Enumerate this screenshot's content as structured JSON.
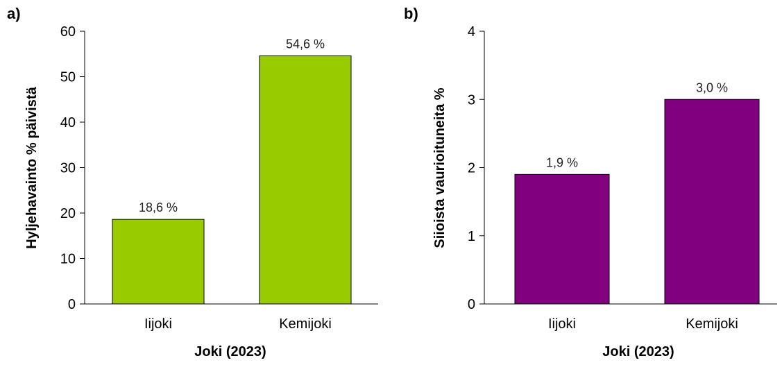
{
  "chart_data": [
    {
      "panel_label": "a)",
      "type": "bar",
      "categories": [
        "Iijoki",
        "Kemijoki"
      ],
      "values": [
        18.6,
        54.6
      ],
      "value_labels": [
        "18,6 %",
        "54,6 %"
      ],
      "xlabel": "Joki (2023)",
      "ylabel": "Hyljehavainto % päivistä",
      "ylim": [
        0,
        60
      ],
      "yticks": [
        0,
        10,
        20,
        30,
        40,
        50,
        60
      ],
      "bar_color": "#99cc00",
      "grid": false
    },
    {
      "panel_label": "b)",
      "type": "bar",
      "categories": [
        "Iijoki",
        "Kemijoki"
      ],
      "values": [
        1.9,
        3.0
      ],
      "value_labels": [
        "1,9 %",
        "3,0 %"
      ],
      "xlabel": "Joki (2023)",
      "ylabel": "Siioista vaurioituneita %",
      "ylim": [
        0,
        4
      ],
      "yticks": [
        0,
        1,
        2,
        3,
        4
      ],
      "bar_color": "#800080",
      "grid": false
    }
  ]
}
